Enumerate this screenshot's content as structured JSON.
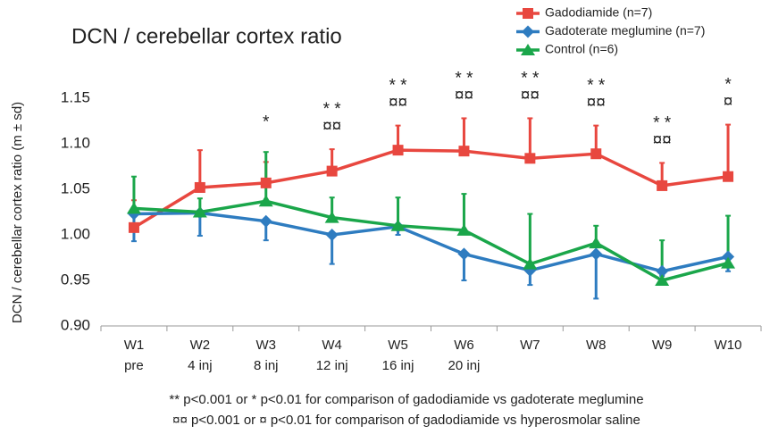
{
  "chart_data": {
    "type": "line",
    "title": "DCN / cerebellar cortex ratio",
    "y_label": "DCN / cerebellar cortex ratio (m ± sd)",
    "categories": [
      "W1",
      "W2",
      "W3",
      "W4",
      "W5",
      "W6",
      "W7",
      "W8",
      "W9",
      "W10"
    ],
    "category_sublabels": [
      "pre",
      "4 inj",
      "8 inj",
      "12 inj",
      "16 inj",
      "20 inj",
      null,
      null,
      null,
      null
    ],
    "ylim": [
      0.9,
      1.15
    ],
    "yticks": [
      {
        "value": 0.9,
        "label": "0.90"
      },
      {
        "value": 0.95,
        "label": "0.95"
      },
      {
        "value": 1.0,
        "label": "1.00"
      },
      {
        "value": 1.05,
        "label": "1.05"
      },
      {
        "value": 1.1,
        "label": "1.10"
      },
      {
        "value": 1.15,
        "label": "1.15"
      }
    ],
    "grid": false,
    "legend": "top-right",
    "series": [
      {
        "name": "Gadodiamide (n=7)",
        "color": "#e8473f",
        "marker": "square",
        "error_direction": "up",
        "values": [
          1.008,
          1.052,
          1.057,
          1.07,
          1.093,
          1.092,
          1.084,
          1.089,
          1.054,
          1.064
        ],
        "errors": [
          0.03,
          0.041,
          0.023,
          0.024,
          0.027,
          0.036,
          0.044,
          0.031,
          0.025,
          0.057
        ]
      },
      {
        "name": "Gadoterate meglumine (n=7)",
        "color": "#2e7cc0",
        "marker": "diamond",
        "error_direction": "down",
        "values": [
          1.023,
          1.024,
          1.015,
          1.0,
          1.009,
          0.979,
          0.961,
          0.979,
          0.96,
          0.976
        ],
        "errors": [
          0.03,
          0.025,
          0.021,
          0.032,
          0.009,
          0.029,
          0.016,
          0.049,
          0.005,
          0.016
        ]
      },
      {
        "name": "Control (n=6)",
        "color": "#1aa64a",
        "marker": "triangle",
        "error_direction": "up",
        "values": [
          1.029,
          1.025,
          1.037,
          1.019,
          1.01,
          1.005,
          0.968,
          0.991,
          0.95,
          0.969
        ],
        "errors": [
          0.035,
          0.015,
          0.054,
          0.022,
          0.031,
          0.04,
          0.055,
          0.019,
          0.044,
          0.052
        ]
      }
    ],
    "significance_stars": [
      null,
      null,
      "*",
      "* *",
      "* *",
      "* *",
      "* *",
      "* *",
      "* *",
      "*"
    ],
    "significance_saline": [
      null,
      null,
      null,
      "¤¤",
      "¤¤",
      "¤¤",
      "¤¤",
      "¤¤",
      "¤¤",
      "¤"
    ],
    "footnotes": [
      "** p<0.001 or * p<0.01 for comparison of gadodiamide vs gadoterate meglumine",
      "¤¤ p<0.001 or ¤ p<0.01 for comparison of gadodiamide vs hyperosmolar saline"
    ]
  }
}
